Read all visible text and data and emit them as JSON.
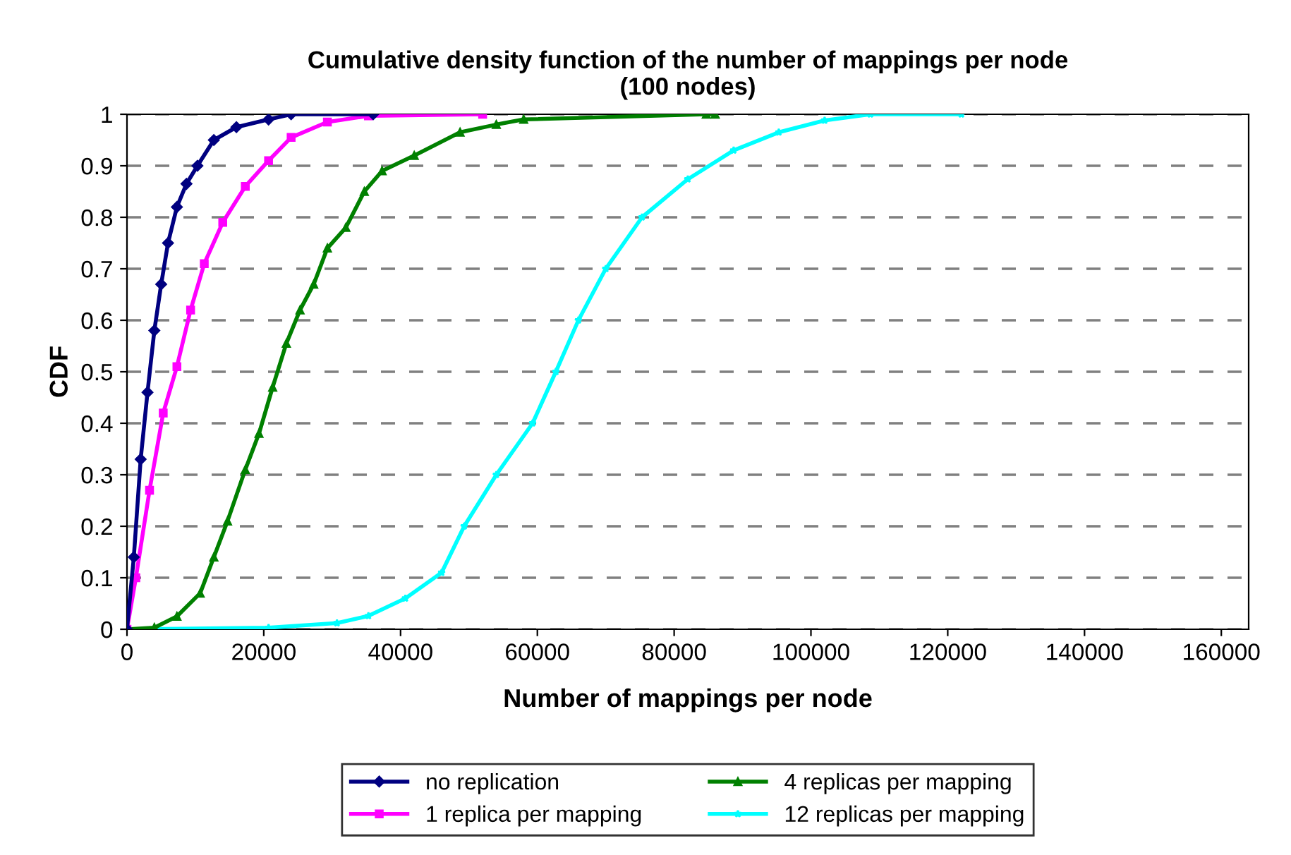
{
  "chart_data": {
    "type": "line",
    "title": "Cumulative density function of the number of mappings per node\n(100 nodes)",
    "xlabel": "Number of mappings per node",
    "ylabel": "CDF",
    "xlim": [
      0,
      164000
    ],
    "xticks": [
      0,
      20000,
      40000,
      60000,
      80000,
      100000,
      120000,
      140000,
      160000
    ],
    "ylim": [
      0,
      1
    ],
    "yticks": [
      0,
      0.1,
      0.2,
      0.3,
      0.4,
      0.5,
      0.6,
      0.7,
      0.8,
      0.9,
      1
    ],
    "grid": "y",
    "legend": "bottom",
    "series": [
      {
        "name": "no replication",
        "color": "#000080",
        "marker": "diamond",
        "x": [
          0,
          1000,
          2000,
          3000,
          4000,
          5000,
          6000,
          7300,
          8700,
          10300,
          12700,
          16000,
          20700,
          24000,
          36000
        ],
        "values": [
          0,
          0.14,
          0.33,
          0.46,
          0.58,
          0.67,
          0.75,
          0.82,
          0.865,
          0.9,
          0.95,
          0.975,
          0.99,
          1,
          1
        ]
      },
      {
        "name": "1 replica per mapping",
        "color": "#ff00ff",
        "marker": "square",
        "x": [
          0,
          1300,
          3300,
          5300,
          7300,
          9300,
          11300,
          14000,
          17300,
          20700,
          24000,
          29300,
          35300,
          52000
        ],
        "values": [
          0,
          0.1,
          0.27,
          0.42,
          0.51,
          0.62,
          0.71,
          0.79,
          0.86,
          0.91,
          0.955,
          0.985,
          0.997,
          1
        ]
      },
      {
        "name": "4 replicas per mapping",
        "color": "#008000",
        "marker": "triangle",
        "x": [
          0,
          4000,
          7300,
          10700,
          12700,
          14700,
          17300,
          19300,
          21300,
          23300,
          25300,
          27300,
          29300,
          32000,
          34700,
          37300,
          42000,
          48700,
          54000,
          58000,
          84700,
          86000
        ],
        "values": [
          0,
          0.003,
          0.025,
          0.07,
          0.14,
          0.21,
          0.31,
          0.38,
          0.47,
          0.555,
          0.62,
          0.67,
          0.74,
          0.78,
          0.85,
          0.89,
          0.92,
          0.965,
          0.98,
          0.99,
          1,
          1
        ]
      },
      {
        "name": "12 replicas per mapping",
        "color": "#00ffff",
        "marker": "star",
        "x": [
          0,
          20700,
          30700,
          35300,
          40700,
          46000,
          49300,
          54000,
          59300,
          62700,
          66000,
          70000,
          75300,
          82000,
          88700,
          95300,
          102000,
          108700,
          122000
        ],
        "values": [
          0,
          0.003,
          0.012,
          0.026,
          0.06,
          0.11,
          0.2,
          0.3,
          0.4,
          0.5,
          0.6,
          0.7,
          0.8,
          0.874,
          0.93,
          0.965,
          0.988,
          1,
          1
        ]
      }
    ]
  }
}
